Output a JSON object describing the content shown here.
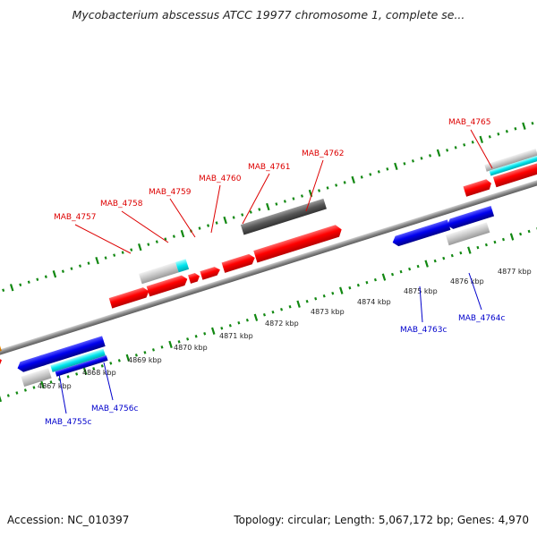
{
  "title": "Mycobacterium abscessus ATCC 19977 chromosome 1, complete se...",
  "footer": {
    "accession": "Accession: NC_010397",
    "summary": "Topology: circular; Length: 5,067,172 bp; Genes: 4,970"
  },
  "colors": {
    "forward_gene": "#ff0000",
    "reverse_gene": "#0000ee",
    "forward_label": "#dd0000",
    "reverse_label": "#0000cc",
    "rna_or_misc": "#00e5ee",
    "pseudo_or_grey": "#c8c8c8",
    "hypothetical_dark": "#555555",
    "orange_feature": "#ff9900",
    "backbone": "#888888",
    "tick_green": "#118811"
  },
  "scale": {
    "unit": "kbp",
    "labels": [
      "4867 kbp",
      "4868 kbp",
      "4869 kbp",
      "4870 kbp",
      "4871 kbp",
      "4872 kbp",
      "4873 kbp",
      "4874 kbp",
      "4875 kbp",
      "4876 kbp",
      "4877 kbp"
    ]
  },
  "genes": [
    {
      "name": "MAB_4755c",
      "strand": "reverse"
    },
    {
      "name": "MAB_4756c",
      "strand": "reverse"
    },
    {
      "name": "MAB_4757",
      "strand": "forward"
    },
    {
      "name": "MAB_4758",
      "strand": "forward"
    },
    {
      "name": "MAB_4759",
      "strand": "forward"
    },
    {
      "name": "MAB_4760",
      "strand": "forward"
    },
    {
      "name": "MAB_4761",
      "strand": "forward"
    },
    {
      "name": "MAB_4762",
      "strand": "forward"
    },
    {
      "name": "MAB_4763c",
      "strand": "reverse"
    },
    {
      "name": "MAB_4764c",
      "strand": "reverse"
    },
    {
      "name": "MAB_4765",
      "strand": "forward"
    }
  ]
}
